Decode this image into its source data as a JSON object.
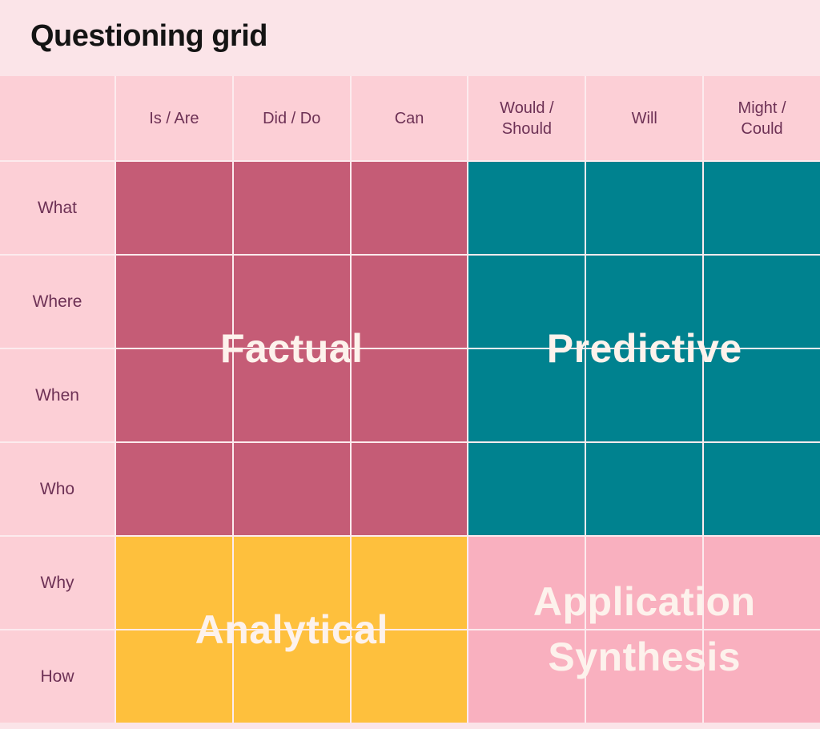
{
  "title": "Questioning grid",
  "colors": {
    "page_background": "#fbe4e8",
    "header_cell_background": "#fccfd6",
    "grid_line": "#fcebee",
    "header_text": "#6d3155",
    "title_text": "#141414",
    "quadrant_label_text": "#fdf2ec",
    "factual": "#c55c76",
    "predictive": "#00828f",
    "analytical": "#fec03d",
    "application_synthesis": "#f9b0bf"
  },
  "grid": {
    "column_headers": [
      "Is / Are",
      "Did / Do",
      "Can",
      "Would /\nShould",
      "Will",
      "Might /\nCould"
    ],
    "row_headers": [
      "What",
      "Where",
      "When",
      "Who",
      "Why",
      "How"
    ]
  },
  "quadrants": [
    {
      "label": "Factual",
      "color": "#c55c76"
    },
    {
      "label": "Predictive",
      "color": "#00828f"
    },
    {
      "label": "Analytical",
      "color": "#fec03d"
    },
    {
      "label": "Application\nSynthesis",
      "color": "#f9b0bf"
    }
  ]
}
